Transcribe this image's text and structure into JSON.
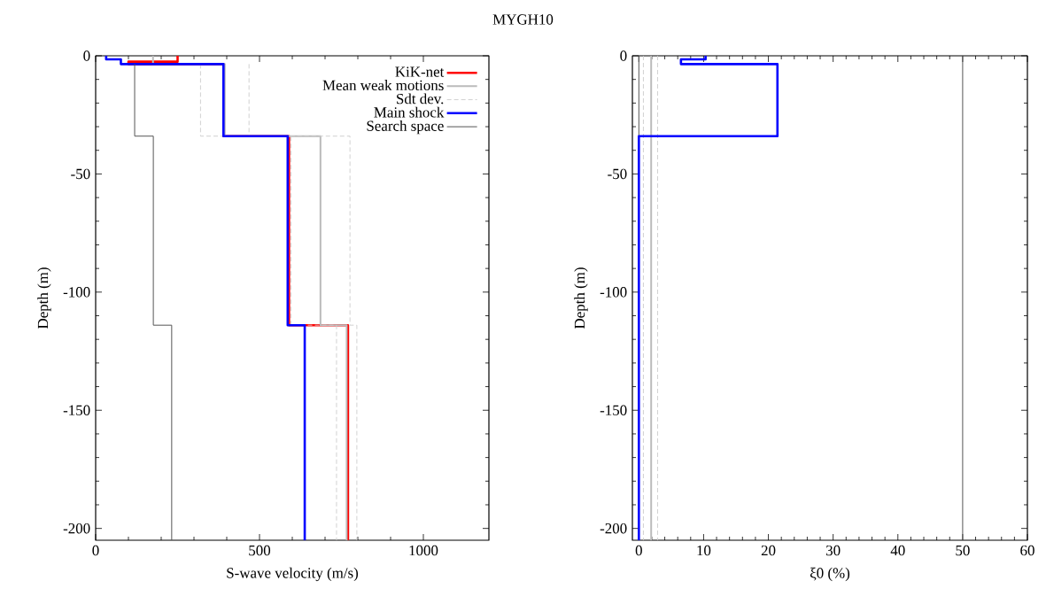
{
  "chart_data": [
    {
      "type": "line",
      "title": "MYGH10",
      "xlabel": "S-wave velocity (m/s)",
      "ylabel": "Depth (m)",
      "xlim": [
        0,
        1200
      ],
      "ylim": [
        -205,
        0
      ],
      "xticks": [
        0,
        500,
        1000
      ],
      "yticks": [
        -200,
        -150,
        -100,
        -50,
        0
      ],
      "legend": "top right",
      "series": [
        {
          "name": "KiK-net",
          "color": "#ff0000",
          "line_style": "solid",
          "x": [
            250,
            250,
            100,
            100,
            390,
            390,
            590,
            590,
            770,
            770
          ],
          "values": [
            0,
            -2.5,
            -2.5,
            -3.5,
            -3.5,
            -34,
            -34,
            -114,
            -114,
            -205
          ]
        },
        {
          "name": "Mean weak motions",
          "color": "#bbbbbb",
          "line_style": "solid",
          "x": [
            175,
            175,
            394,
            394,
            686,
            686,
            766,
            766
          ],
          "values": [
            0,
            -3.5,
            -3.5,
            -34,
            -34,
            -114,
            -114,
            -205
          ]
        },
        {
          "name": "Sdt dev.",
          "color": "#cccccc",
          "line_style": "dashed",
          "x": [
            320,
            320,
            596,
            596,
            735,
            735
          ],
          "values": [
            -3.5,
            -34,
            -34,
            -114,
            -114,
            -205
          ]
        },
        {
          "color": "#cccccc",
          "line_style": "dashed",
          "x": [
            468,
            468,
            776,
            776,
            797,
            797
          ],
          "values": [
            -3.5,
            -34,
            -34,
            -114,
            -114,
            -205
          ]
        },
        {
          "name": "Main shock",
          "color": "#0000ff",
          "line_style": "solid",
          "x": [
            32,
            32,
            77,
            77,
            390,
            390,
            586,
            586,
            638,
            638
          ],
          "values": [
            0,
            -1.5,
            -1.5,
            -3.5,
            -3.5,
            -34,
            -34,
            -114,
            -114,
            -205
          ]
        },
        {
          "name": "Search space",
          "color": "#555555",
          "line_style": "solid",
          "x": [
            119,
            119,
            176,
            176,
            232,
            232
          ],
          "values": [
            -3.5,
            -34,
            -34,
            -114,
            -114,
            -205
          ]
        }
      ]
    },
    {
      "type": "line",
      "xlabel": "ξ0 (%)",
      "ylabel": "Depth (m)",
      "xlim": [
        -1,
        60
      ],
      "ylim": [
        -205,
        0
      ],
      "xticks": [
        0,
        10,
        20,
        30,
        40,
        50,
        60
      ],
      "yticks": [
        -200,
        -150,
        -100,
        -50,
        0
      ],
      "ref_lines": [
        {
          "axis": "x",
          "value": 0,
          "color": "#555555",
          "line_style": "solid"
        },
        {
          "axis": "x",
          "value": 50,
          "color": "#555555",
          "line_style": "solid"
        }
      ],
      "series": [
        {
          "color": "#bbbbbb",
          "line_style": "solid",
          "x": [
            1.9,
            1.9
          ],
          "values": [
            0,
            -205
          ]
        },
        {
          "color": "#cccccc",
          "line_style": "dashed",
          "x": [
            0.7,
            0.7
          ],
          "values": [
            0,
            -205
          ]
        },
        {
          "color": "#cccccc",
          "line_style": "dashed",
          "x": [
            2.9,
            2.9
          ],
          "values": [
            0,
            -205
          ]
        },
        {
          "color": "#0000ff",
          "line_style": "solid",
          "x": [
            10.3,
            10.3,
            6.5,
            6.5,
            21.4,
            21.4,
            0,
            0
          ],
          "values": [
            0,
            -1.5,
            -1.5,
            -3.5,
            -3.5,
            -34,
            -34,
            -205
          ]
        }
      ]
    }
  ]
}
